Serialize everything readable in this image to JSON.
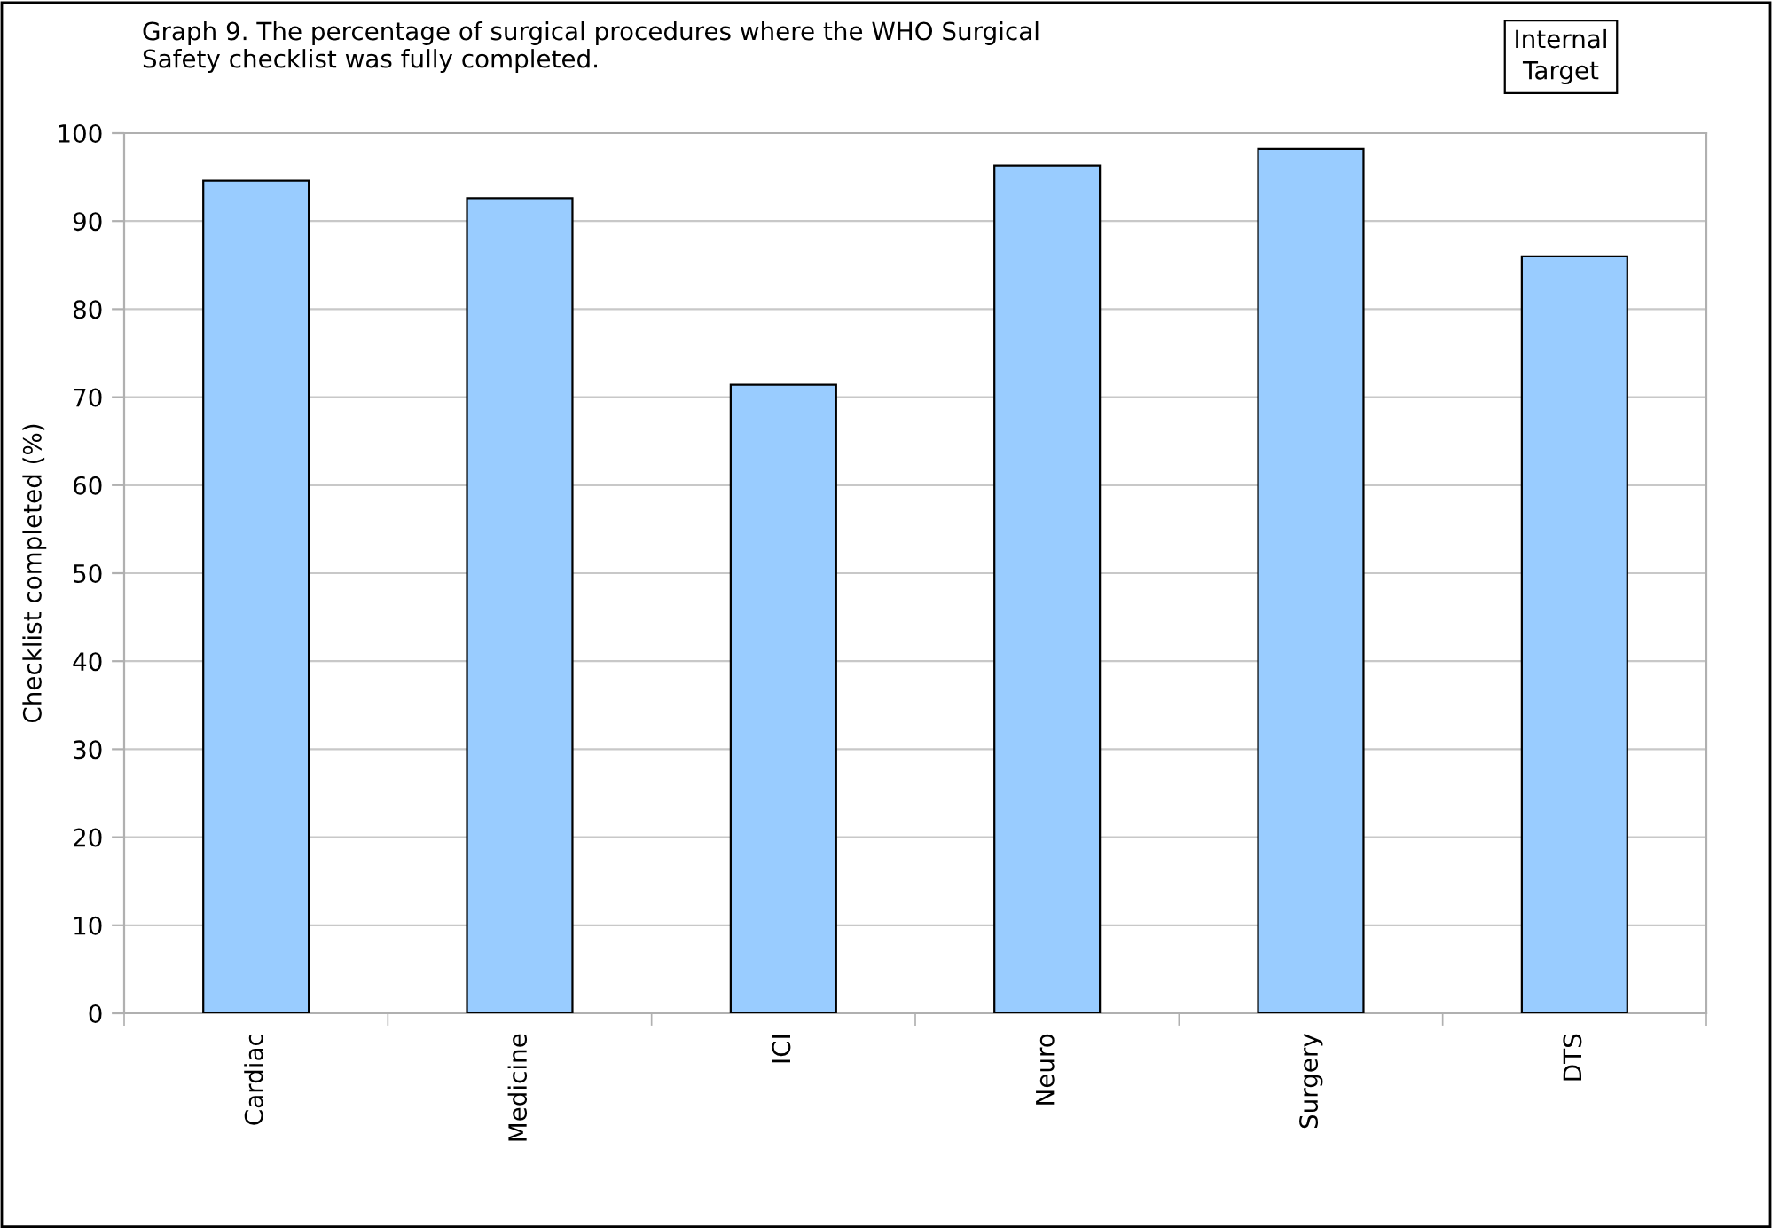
{
  "chart_data": {
    "type": "bar",
    "title": "Graph 9. The percentage of surgical procedures where the WHO Surgical\nSafety checklist was fully completed.",
    "ylabel": "Checklist completed (%)",
    "categories": [
      "Cardiac",
      "Medicine",
      "ICI",
      "Neuro",
      "Surgery",
      "DTS"
    ],
    "values": [
      94.6,
      92.6,
      71.4,
      96.3,
      98.2,
      86.0
    ],
    "color": "#99ccff",
    "ylim": [
      0,
      100
    ],
    "yticks": [
      0,
      10,
      20,
      30,
      40,
      50,
      60,
      70,
      80,
      90,
      100
    ],
    "grid": "y",
    "annotations": [
      "Internal\nTarget"
    ]
  }
}
